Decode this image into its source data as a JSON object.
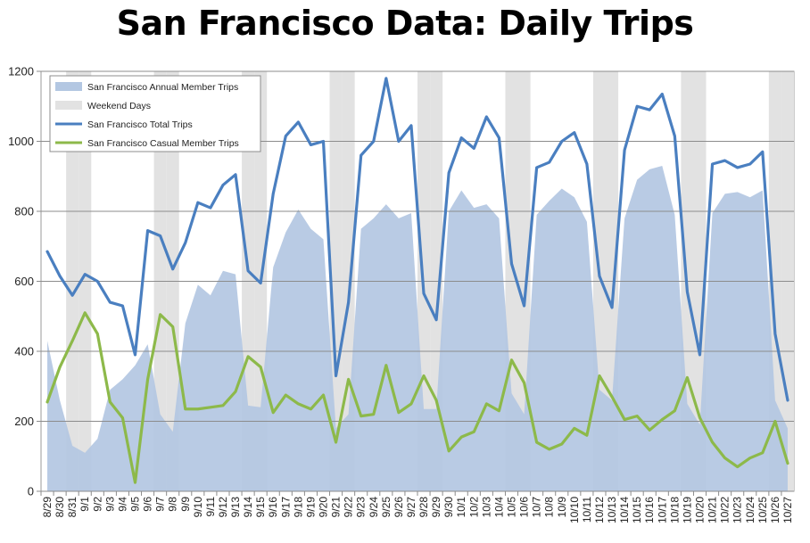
{
  "chart_data": {
    "type": "line",
    "title": "San Francisco Data: Daily Trips",
    "ylim": [
      0,
      1200
    ],
    "yticks": [
      0,
      200,
      400,
      600,
      800,
      1000,
      1200
    ],
    "grid": true,
    "legend_position": "top-left",
    "categories": [
      "8/29",
      "8/30",
      "8/31",
      "9/1",
      "9/2",
      "9/3",
      "9/4",
      "9/5",
      "9/6",
      "9/7",
      "9/8",
      "9/9",
      "9/10",
      "9/11",
      "9/12",
      "9/13",
      "9/14",
      "9/15",
      "9/16",
      "9/17",
      "9/18",
      "9/19",
      "9/20",
      "9/21",
      "9/22",
      "9/23",
      "9/24",
      "9/25",
      "9/26",
      "9/27",
      "9/28",
      "9/29",
      "9/30",
      "10/1",
      "10/2",
      "10/3",
      "10/4",
      "10/5",
      "10/6",
      "10/7",
      "10/8",
      "10/9",
      "10/10",
      "10/11",
      "10/12",
      "10/13",
      "10/14",
      "10/15",
      "10/16",
      "10/17",
      "10/18",
      "10/19",
      "10/20",
      "10/21",
      "10/22",
      "10/23",
      "10/24",
      "10/25",
      "10/26",
      "10/27"
    ],
    "weekend_categories": [
      "8/31",
      "9/1",
      "9/7",
      "9/8",
      "9/14",
      "9/15",
      "9/21",
      "9/22",
      "9/28",
      "9/29",
      "10/5",
      "10/6",
      "10/12",
      "10/13",
      "10/19",
      "10/20",
      "10/26",
      "10/27"
    ],
    "series": [
      {
        "name": "San Francisco Annual Member Trips",
        "style": "area",
        "color": "#b3c7e2",
        "values": [
          430,
          260,
          130,
          110,
          150,
          290,
          320,
          360,
          420,
          220,
          170,
          480,
          590,
          560,
          630,
          620,
          245,
          240,
          640,
          740,
          805,
          750,
          720,
          180,
          220,
          750,
          780,
          820,
          780,
          795,
          235,
          235,
          800,
          860,
          810,
          820,
          780,
          280,
          220,
          790,
          830,
          865,
          840,
          770,
          290,
          260,
          780,
          890,
          920,
          930,
          790,
          250,
          190,
          795,
          850,
          855,
          840,
          860,
          260,
          180
        ]
      },
      {
        "name": "Weekend Days",
        "style": "band",
        "color": "#e2e2e2"
      },
      {
        "name": "San Francisco Total Trips",
        "style": "line",
        "color": "#4a7fc0",
        "values": [
          685,
          615,
          560,
          620,
          600,
          540,
          530,
          390,
          745,
          730,
          635,
          710,
          825,
          810,
          875,
          905,
          630,
          595,
          850,
          1015,
          1055,
          990,
          1000,
          330,
          540,
          960,
          1000,
          1180,
          1000,
          1045,
          565,
          490,
          910,
          1010,
          980,
          1070,
          1010,
          650,
          530,
          925,
          940,
          1000,
          1025,
          935,
          615,
          525,
          975,
          1100,
          1090,
          1135,
          1015,
          570,
          390,
          935,
          945,
          925,
          935,
          970,
          450,
          260
        ]
      },
      {
        "name": "San Francisco Casual Member Trips",
        "style": "line",
        "color": "#8db94a",
        "values": [
          255,
          355,
          430,
          510,
          450,
          255,
          210,
          25,
          320,
          505,
          470,
          235,
          235,
          240,
          245,
          285,
          385,
          355,
          225,
          275,
          250,
          235,
          275,
          140,
          320,
          215,
          220,
          360,
          225,
          250,
          330,
          260,
          115,
          155,
          170,
          250,
          230,
          375,
          310,
          140,
          120,
          135,
          180,
          160,
          330,
          270,
          205,
          215,
          175,
          205,
          230,
          325,
          210,
          140,
          95,
          70,
          95,
          110,
          200,
          80
        ]
      }
    ]
  }
}
